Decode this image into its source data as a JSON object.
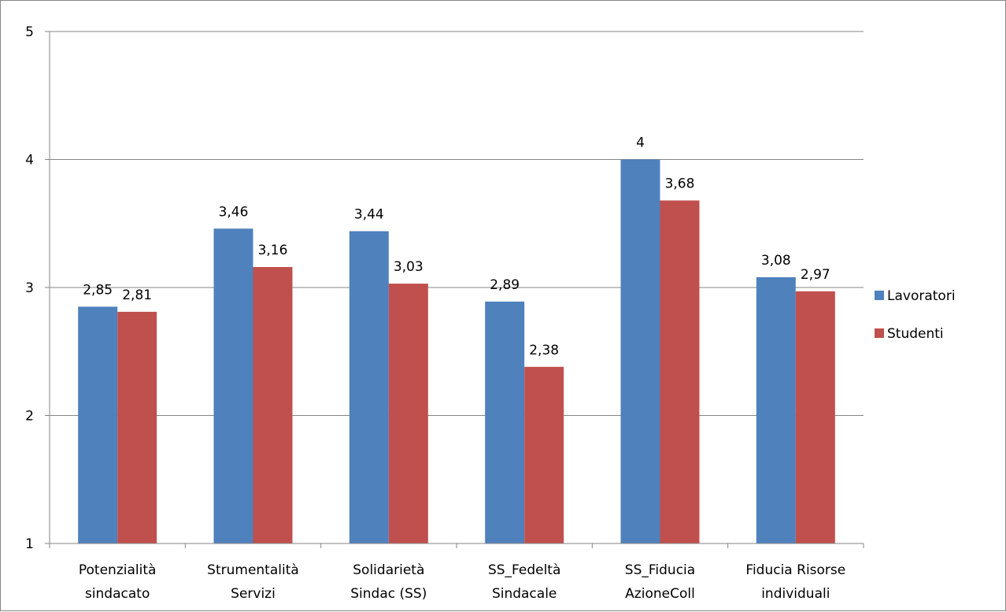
{
  "chart_data": {
    "type": "bar",
    "categories": [
      [
        "Potenzialità",
        "sindacato"
      ],
      [
        "Strumentalità",
        "Servizi"
      ],
      [
        "Solidarietà",
        "Sindac (SS)"
      ],
      [
        "SS_Fedeltà",
        "Sindacale"
      ],
      [
        "SS_Fiducia",
        "AzioneColl"
      ],
      [
        "Fiducia Risorse",
        "individuali"
      ]
    ],
    "series": [
      {
        "name": "Lavoratori",
        "color": "#4F81BD",
        "values": [
          2.85,
          3.46,
          3.44,
          2.89,
          4,
          3.08
        ],
        "labels": [
          "2,85",
          "3,46",
          "3,44",
          "2,89",
          "4",
          "3,08"
        ]
      },
      {
        "name": "Studenti",
        "color": "#C0504D",
        "values": [
          2.81,
          3.16,
          3.03,
          2.38,
          3.68,
          2.97
        ],
        "labels": [
          "2,81",
          "3,16",
          "3,03",
          "2,38",
          "3,68",
          "2,97"
        ]
      }
    ],
    "title": "",
    "xlabel": "",
    "ylabel": "",
    "ylim": [
      1,
      5
    ],
    "yticks": [
      1,
      2,
      3,
      4,
      5
    ],
    "ytick_labels": [
      "1",
      "2",
      "3",
      "4",
      "5"
    ],
    "grid": true,
    "legend_position": "right"
  }
}
